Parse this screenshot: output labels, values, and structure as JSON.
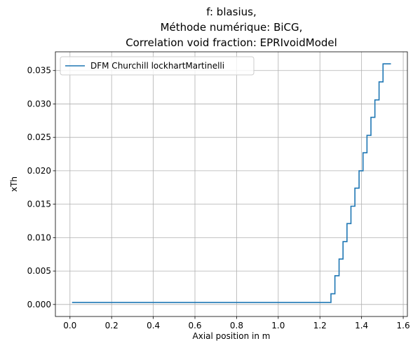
{
  "chart_data": {
    "type": "line",
    "title_lines": [
      "f: blasius,",
      "Méthode numérique: BiCG,",
      "Correlation void fraction: EPRIvoidModel"
    ],
    "xlabel": "Axial position in m",
    "ylabel": "xTh",
    "xlim": [
      -0.07,
      1.62
    ],
    "ylim": [
      -0.0018,
      0.0378
    ],
    "x_ticks": [
      0.0,
      0.2,
      0.4,
      0.6,
      0.8,
      1.0,
      1.2,
      1.4,
      1.6
    ],
    "x_tick_labels": [
      "0.0",
      "0.2",
      "0.4",
      "0.6",
      "0.8",
      "1.0",
      "1.2",
      "1.4",
      "1.6"
    ],
    "y_ticks": [
      0.0,
      0.005,
      0.01,
      0.015,
      0.02,
      0.025,
      0.03,
      0.035
    ],
    "y_tick_labels": [
      "0.000",
      "0.005",
      "0.010",
      "0.015",
      "0.020",
      "0.025",
      "0.030",
      "0.035"
    ],
    "grid": true,
    "legend_position": "top-left",
    "series": [
      {
        "name": "DFM Churchill lockhartMartinelli",
        "color": "#1f77b4",
        "step": true,
        "x": [
          0.01,
          1.234,
          1.253,
          1.272,
          1.292,
          1.311,
          1.33,
          1.349,
          1.368,
          1.388,
          1.407,
          1.426,
          1.445,
          1.464,
          1.484,
          1.503,
          1.522,
          1.541
        ],
        "y": [
          0.0003,
          0.0003,
          0.0016,
          0.0043,
          0.0068,
          0.0094,
          0.0121,
          0.0147,
          0.0174,
          0.02,
          0.0227,
          0.0253,
          0.028,
          0.0306,
          0.0333,
          0.036,
          0.036,
          0.036
        ]
      }
    ]
  }
}
